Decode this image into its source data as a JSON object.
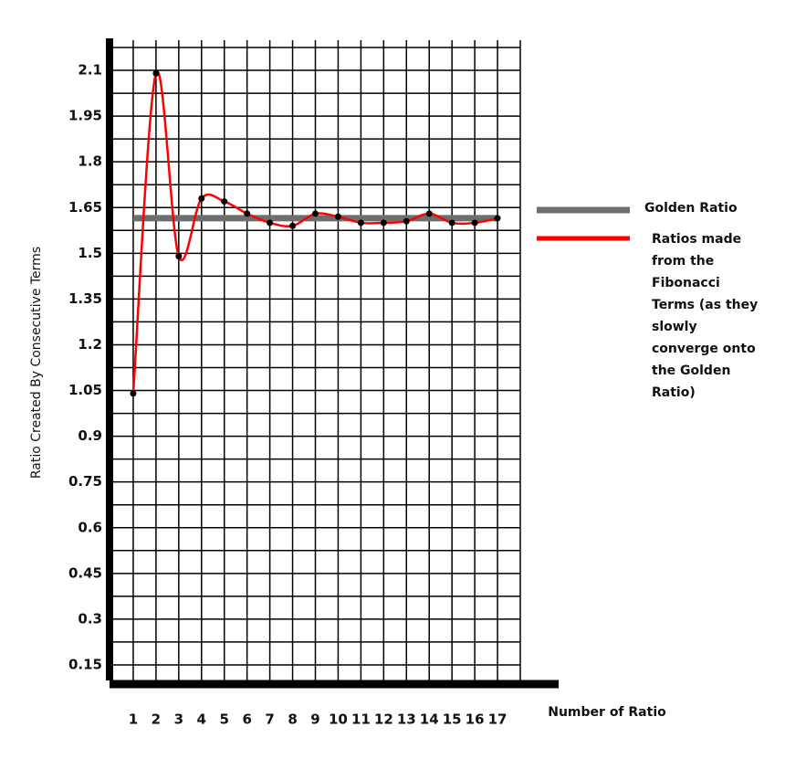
{
  "chart_data": {
    "type": "line",
    "y_label": "Ratio Created By Consecutive Terms",
    "x_label": "Number of Ratio",
    "x": [
      1,
      2,
      3,
      4,
      5,
      6,
      7,
      8,
      9,
      10,
      11,
      12,
      13,
      14,
      15,
      16,
      17
    ],
    "series": [
      {
        "name": "Ratios made from the Fibonacci Terms (as they slowly converge onto the Golden Ratio)",
        "color": "#ff0000",
        "values": [
          1.04,
          2.09,
          1.49,
          1.68,
          1.67,
          1.63,
          1.6,
          1.59,
          1.63,
          1.62,
          1.6,
          1.6,
          1.605,
          1.63,
          1.6,
          1.6,
          1.615
        ]
      }
    ],
    "reference_line": {
      "name": "Golden Ratio",
      "value": 1.615,
      "color": "#6e6e6e"
    },
    "xlim": [
      0,
      18
    ],
    "xticks": [
      1,
      2,
      3,
      4,
      5,
      6,
      7,
      8,
      9,
      10,
      11,
      12,
      13,
      14,
      15,
      16,
      17
    ],
    "ylim": [
      0.075,
      2.175
    ],
    "yticks": [
      0.15,
      0.3,
      0.45,
      0.6,
      0.75,
      0.9,
      1.05,
      1.2,
      1.35,
      1.5,
      1.65,
      1.8,
      1.95,
      2.1
    ],
    "grid": true
  }
}
